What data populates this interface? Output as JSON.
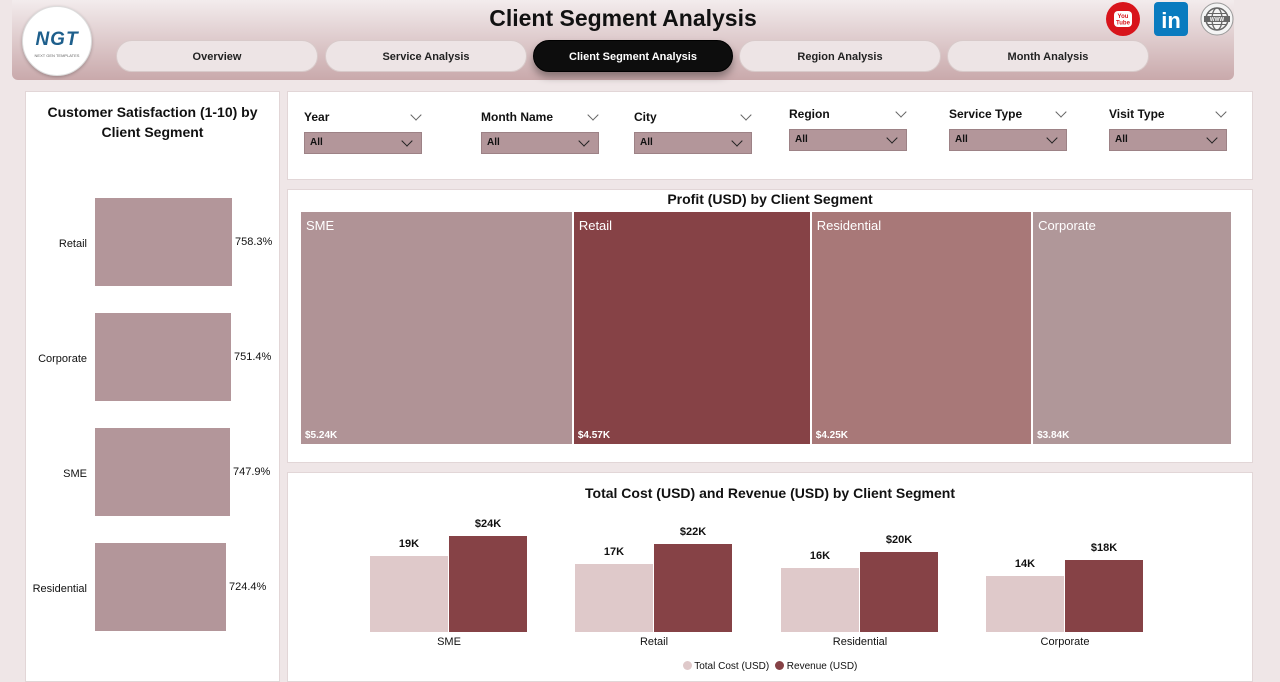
{
  "header": {
    "title": "Client Segment Analysis",
    "logo_text": "NGT",
    "logo_subtext": "NEXT GEN TEMPLATES",
    "tabs": [
      {
        "label": "Overview"
      },
      {
        "label": "Service Analysis"
      },
      {
        "label": "Client Segment Analysis"
      },
      {
        "label": "Region Analysis"
      },
      {
        "label": "Month Analysis"
      }
    ],
    "active_tab": 2,
    "social_icons": [
      "youtube-icon",
      "linkedin-icon",
      "website-globe-icon"
    ],
    "youtube_text": "You Tube",
    "linkedin_text": "in"
  },
  "filters": [
    {
      "label": "Year",
      "value": "All"
    },
    {
      "label": "Month Name",
      "value": "All"
    },
    {
      "label": "City",
      "value": "All"
    },
    {
      "label": "Region",
      "value": "All"
    },
    {
      "label": "Service Type",
      "value": "All"
    },
    {
      "label": "Visit Type",
      "value": "All"
    }
  ],
  "colors": {
    "accent_light": "#b3969a",
    "accent_dark": "#864246",
    "cost": "#dfc9ca",
    "revenue": "#864246"
  },
  "chart_data": [
    {
      "type": "bar",
      "orientation": "horizontal",
      "title": "Customer Satisfaction (1-10) by Client Segment",
      "categories": [
        "Retail",
        "Corporate",
        "SME",
        "Residential"
      ],
      "values": [
        758.3,
        751.4,
        747.9,
        724.4
      ],
      "value_labels": [
        "758.3%",
        "751.4%",
        "747.9%",
        "724.4%"
      ],
      "grid": false
    },
    {
      "type": "treemap",
      "title": "Profit (USD) by Client Segment",
      "categories": [
        "SME",
        "Retail",
        "Residential",
        "Corporate"
      ],
      "values": [
        5240,
        4570,
        4250,
        3840
      ],
      "value_labels": [
        "$5.24K",
        "$4.57K",
        "$4.25K",
        "$3.84K"
      ],
      "colors": [
        "#b09396",
        "#864246",
        "#a87878",
        "#b09799"
      ]
    },
    {
      "type": "bar",
      "title": "Total Cost (USD) and Revenue (USD) by Client Segment",
      "categories": [
        "SME",
        "Retail",
        "Residential",
        "Corporate"
      ],
      "series": [
        {
          "name": "Total Cost (USD)",
          "values": [
            19000,
            17000,
            16000,
            14000
          ],
          "labels": [
            "19K",
            "17K",
            "16K",
            "14K"
          ]
        },
        {
          "name": "Revenue (USD)",
          "values": [
            24000,
            22000,
            20000,
            18000
          ],
          "labels": [
            "$24K",
            "$22K",
            "$20K",
            "$18K"
          ]
        }
      ],
      "legend": "bottom",
      "grid": false
    }
  ]
}
